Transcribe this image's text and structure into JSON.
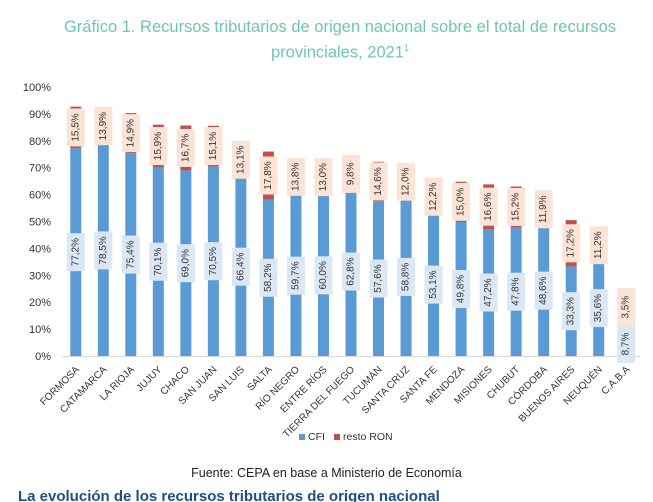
{
  "chart_data": {
    "type": "bar",
    "stacked": true,
    "title": "Gráfico 1. Recursos tributarios de origen nacional sobre el total de recursos provinciales, 2021",
    "title_footnote": "1",
    "categories": [
      "FORMOSA",
      "CATAMARCA",
      "LA RIOJA",
      "JUJUY",
      "CHACO",
      "SAN JUAN",
      "SAN LUIS",
      "SALTA",
      "RÍO NEGRO",
      "ENTRE RÍOS",
      "TIERRA DEL FUEGO",
      "TUCUMÁN",
      "SANTA CRUZ",
      "SANTA FE",
      "MENDOZA",
      "MISIONES",
      "CHUBUT",
      "CÓRDOBA",
      "BUENOS AIRES",
      "NEUQUÉN",
      "C.A.B.A"
    ],
    "series": [
      {
        "name": "CFI",
        "color": "#5b9bd5",
        "values": [
          77.2,
          78.5,
          75.4,
          70.1,
          69.0,
          70.5,
          66.4,
          58.2,
          59.7,
          60.0,
          62.8,
          57.6,
          58.8,
          53.1,
          49.8,
          47.2,
          47.8,
          48.6,
          33.3,
          35.6,
          8.7
        ],
        "labels": [
          "77,2%",
          "78,5%",
          "75,4%",
          "70,1%",
          "69,0%",
          "70,5%",
          "66,4%",
          "58,2%",
          "59,7%",
          "60,0%",
          "62,8%",
          "57,6%",
          "58,8%",
          "53,1%",
          "49,8%",
          "47,2%",
          "47,8%",
          "48,6%",
          "33,3%",
          "35,6%",
          "8,7%"
        ]
      },
      {
        "name": "resto RON",
        "color": "#c0504d",
        "values": [
          15.5,
          13.9,
          14.9,
          15.9,
          16.7,
          15.1,
          13.1,
          17.8,
          13.8,
          13.0,
          9.8,
          14.6,
          12.0,
          12.2,
          15.0,
          16.6,
          15.2,
          11.9,
          17.2,
          11.2,
          3.5
        ],
        "labels": [
          "15,5%",
          "13,9%",
          "14,9%",
          "15,9%",
          "16,7%",
          "15,1%",
          "13,1%",
          "17,8%",
          "13,8%",
          "13,0%",
          "9,8%",
          "14,6%",
          "12,0%",
          "12,2%",
          "15,0%",
          "16,6%",
          "15,2%",
          "11,9%",
          "17,2%",
          "11,2%",
          "3,5%"
        ]
      }
    ],
    "ylim": [
      0,
      100
    ],
    "yticks": [
      "0%",
      "10%",
      "20%",
      "30%",
      "40%",
      "50%",
      "60%",
      "70%",
      "80%",
      "90%",
      "100%"
    ],
    "xlabel": "",
    "ylabel": "",
    "legend_position": "bottom",
    "grid": false
  },
  "source": "Fuente: CEPA en base a Ministerio de Economía",
  "cut_text": "La evolución de los recursos tributarios de origen nacional"
}
